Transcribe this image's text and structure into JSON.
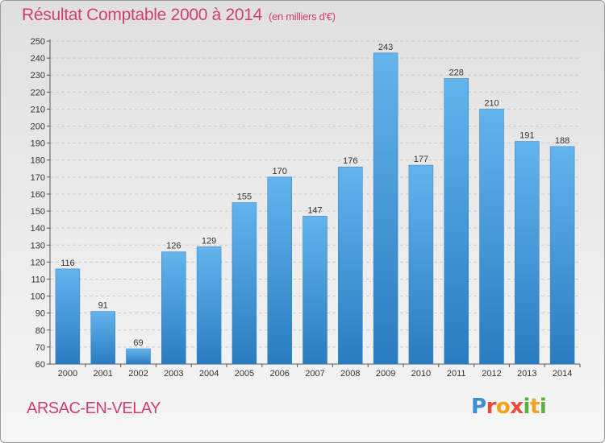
{
  "header": {
    "title": "Résultat Comptable 2000 à 2014",
    "unit": "(en milliers d'€)"
  },
  "footer": {
    "commune": "ARSAC-EN-VELAY",
    "logo_text": "Proxiti",
    "logo_letters": [
      {
        "ch": "P",
        "color": "#3a8fd6"
      },
      {
        "ch": "r",
        "color": "#e84c3d"
      },
      {
        "ch": "o",
        "color": "#f2a21f"
      },
      {
        "ch": "x",
        "color": "#e84c3d"
      },
      {
        "ch": "i",
        "color": "#5aae3b"
      },
      {
        "ch": "t",
        "color": "#f2a21f"
      },
      {
        "ch": "i",
        "color": "#5aae3b"
      }
    ]
  },
  "colors": {
    "bar_light": "#63b4ec",
    "bar_dark": "#2a7cc0",
    "title": "#d33f6b",
    "grid": "#c9c9c9"
  },
  "chart_data": {
    "type": "bar",
    "title": "Résultat Comptable 2000 à 2014",
    "subtitle": "(en milliers d'€)",
    "categories": [
      "2000",
      "2001",
      "2002",
      "2003",
      "2004",
      "2005",
      "2006",
      "2007",
      "2008",
      "2009",
      "2010",
      "2011",
      "2012",
      "2013",
      "2014"
    ],
    "values": [
      116,
      91,
      69,
      126,
      129,
      155,
      170,
      147,
      176,
      243,
      177,
      228,
      210,
      191,
      188
    ],
    "ylim": [
      60,
      250
    ],
    "ytick_step": 10,
    "grid": true,
    "legend": "none",
    "data_labels": true
  }
}
